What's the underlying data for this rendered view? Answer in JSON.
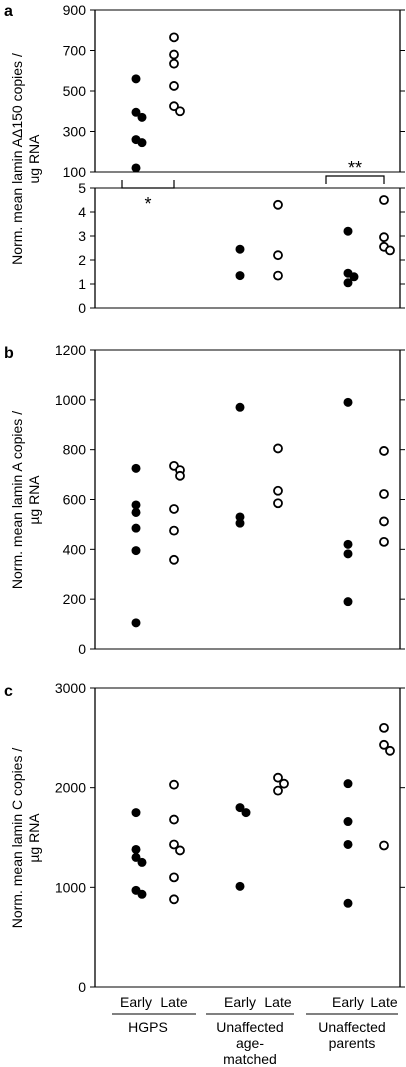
{
  "chart_data": [
    {
      "panel": "a",
      "type": "scatter",
      "ylabel": "Norm. mean lamin AΔ150 copies / ug RNA",
      "broken_axis": true,
      "ylim_lower": [
        0,
        5
      ],
      "ylim_upper": [
        100,
        900
      ],
      "yticks_lower": [
        "0",
        "1",
        "2",
        "3",
        "4",
        "5"
      ],
      "yticks_upper": [
        "100",
        "300",
        "500",
        "700",
        "900"
      ],
      "categories": [
        "Early",
        "Late",
        "Early",
        "Late",
        "Early",
        "Late"
      ],
      "series": [
        {
          "group": "HGPS",
          "timepoint": "Early",
          "values": [
            560,
            395,
            370,
            260,
            245,
            120
          ]
        },
        {
          "group": "HGPS",
          "timepoint": "Late",
          "values": [
            765,
            680,
            635,
            525,
            425,
            400
          ]
        },
        {
          "group": "Unaffected age-matched",
          "timepoint": "Early",
          "values": [
            2.45,
            1.35
          ]
        },
        {
          "group": "Unaffected age-matched",
          "timepoint": "Late",
          "values": [
            4.3,
            2.2,
            1.35
          ]
        },
        {
          "group": "Unaffected parents",
          "timepoint": "Early",
          "values": [
            3.2,
            1.45,
            1.3,
            1.05
          ]
        },
        {
          "group": "Unaffected parents",
          "timepoint": "Late",
          "values": [
            4.5,
            2.95,
            2.55,
            2.4
          ]
        }
      ],
      "annotations": [
        "*",
        "**"
      ]
    },
    {
      "panel": "b",
      "type": "scatter",
      "ylabel": "Norm. mean lamin A copies / µg RNA",
      "ylim": [
        0,
        1200
      ],
      "yticks": [
        "0",
        "200",
        "400",
        "600",
        "800",
        "1000",
        "1200"
      ],
      "categories": [
        "Early",
        "Late",
        "Early",
        "Late",
        "Early",
        "Late"
      ],
      "series": [
        {
          "group": "HGPS",
          "timepoint": "Early",
          "values": [
            725,
            578,
            548,
            485,
            395,
            105
          ]
        },
        {
          "group": "HGPS",
          "timepoint": "Late",
          "values": [
            735,
            718,
            695,
            562,
            475,
            358
          ]
        },
        {
          "group": "Unaffected age-matched",
          "timepoint": "Early",
          "values": [
            970,
            530,
            505
          ]
        },
        {
          "group": "Unaffected age-matched",
          "timepoint": "Late",
          "values": [
            805,
            635,
            585
          ]
        },
        {
          "group": "Unaffected parents",
          "timepoint": "Early",
          "values": [
            990,
            420,
            382,
            190
          ]
        },
        {
          "group": "Unaffected parents",
          "timepoint": "Late",
          "values": [
            795,
            622,
            512,
            430
          ]
        }
      ]
    },
    {
      "panel": "c",
      "type": "scatter",
      "ylabel": "Norm. mean lamin C copies / µg RNA",
      "ylim": [
        0,
        3000
      ],
      "yticks": [
        "0",
        "1000",
        "2000",
        "3000"
      ],
      "categories": [
        "Early",
        "Late",
        "Early",
        "Late",
        "Early",
        "Late"
      ],
      "series": [
        {
          "group": "HGPS",
          "timepoint": "Early",
          "values": [
            1750,
            1380,
            1300,
            1250,
            970,
            930
          ]
        },
        {
          "group": "HGPS",
          "timepoint": "Late",
          "values": [
            2030,
            1680,
            1430,
            1370,
            1100,
            880
          ]
        },
        {
          "group": "Unaffected age-matched",
          "timepoint": "Early",
          "values": [
            1800,
            1750,
            1010
          ]
        },
        {
          "group": "Unaffected age-matched",
          "timepoint": "Late",
          "values": [
            2100,
            2040,
            1970
          ]
        },
        {
          "group": "Unaffected parents",
          "timepoint": "Early",
          "values": [
            2040,
            1660,
            1430,
            840
          ]
        },
        {
          "group": "Unaffected parents",
          "timepoint": "Late",
          "values": [
            2600,
            2430,
            2370,
            1420
          ]
        }
      ]
    }
  ],
  "x_axis": {
    "categories": [
      "Early",
      "Late",
      "Early",
      "Late",
      "Early",
      "Late"
    ],
    "groups": [
      {
        "lines": [
          "HGPS"
        ]
      },
      {
        "lines": [
          "Unaffected",
          "age-",
          "matched"
        ]
      },
      {
        "lines": [
          "Unaffected",
          "parents"
        ]
      }
    ]
  }
}
